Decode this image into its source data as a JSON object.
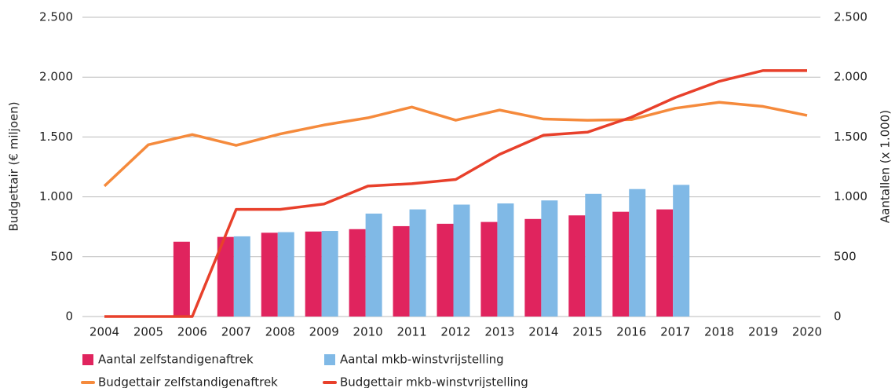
{
  "chart_data": {
    "type": "bar",
    "y_label": "Budgettair (€ miljoen)",
    "y2_label": "Aantallen (x 1.000)",
    "categories": [
      "2004",
      "2005",
      "2006",
      "2007",
      "2008",
      "2009",
      "2010",
      "2011",
      "2012",
      "2013",
      "2014",
      "2015",
      "2016",
      "2017",
      "2018",
      "2019",
      "2020"
    ],
    "ylim": [
      0,
      2500
    ],
    "yticks": [
      0,
      500,
      {
        "value": 1000,
        "label": "1.000"
      },
      {
        "value": 1500,
        "label": "1.500"
      },
      {
        "value": 2000,
        "label": "2.000"
      },
      {
        "value": 2500,
        "label": "2.500"
      }
    ],
    "y2lim": [
      0,
      2500
    ],
    "y2ticks": [
      0,
      500,
      {
        "value": 1000,
        "label": "1.000"
      },
      {
        "value": 1500,
        "label": "1.500"
      },
      {
        "value": 2000,
        "label": "2.000"
      },
      {
        "value": 2500,
        "label": "2.500"
      }
    ],
    "grid": true,
    "series": [
      {
        "name": "Aantal zelfstandigenaftrek",
        "type": "bar",
        "axis": "y2",
        "color": "#e0245e",
        "values": [
          null,
          null,
          625,
          665,
          700,
          710,
          730,
          755,
          775,
          790,
          815,
          845,
          875,
          895,
          null,
          null,
          null
        ]
      },
      {
        "name": "Aantal mkb-winstvrijstelling",
        "type": "bar",
        "axis": "y2",
        "color": "#80b9e6",
        "values": [
          null,
          null,
          null,
          670,
          705,
          715,
          860,
          895,
          935,
          945,
          970,
          1025,
          1065,
          1100,
          null,
          null,
          null
        ]
      },
      {
        "name": "Budgettair zelfstandigenaftrek",
        "type": "line",
        "color": "#f58a3c",
        "values": [
          1090,
          1435,
          1520,
          1430,
          1525,
          1600,
          1660,
          1750,
          1640,
          1725,
          1650,
          1640,
          1645,
          1740,
          1790,
          1755,
          1680
        ]
      },
      {
        "name": "Budgettair mkb-winstvrijstelling",
        "type": "line",
        "color": "#e8402b",
        "values": [
          0,
          0,
          0,
          895,
          895,
          940,
          1090,
          1110,
          1145,
          1355,
          1515,
          1540,
          1665,
          1830,
          1965,
          2055,
          2055
        ]
      }
    ]
  }
}
